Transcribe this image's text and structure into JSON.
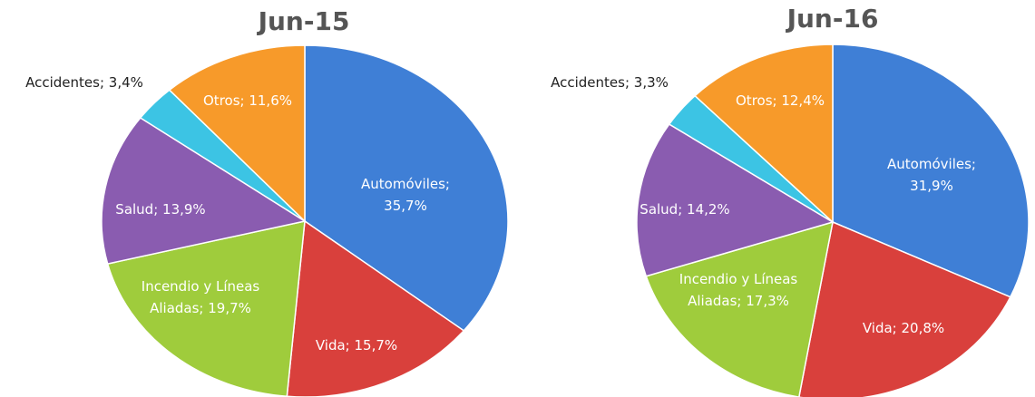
{
  "chart_data": [
    {
      "type": "pie",
      "title": "Jun-15",
      "values": [
        35.7,
        15.7,
        19.7,
        13.9,
        3.4,
        11.6
      ],
      "value_labels": [
        [
          "Automóviles;",
          "35,7%"
        ],
        [
          "Vida; 15,7%"
        ],
        [
          "Incendio y Líneas",
          "Aliadas; 19,7%"
        ],
        [
          "Salud; 13,9%"
        ],
        [
          "Accidentes; 3,4%"
        ],
        [
          "Otros; 11,6%"
        ]
      ],
      "colors": [
        "#3f7fd6",
        "#d9403c",
        "#9fcc3c",
        "#8a5cb0",
        "#3cc4e4",
        "#f79a2a"
      ]
    },
    {
      "type": "pie",
      "title": "Jun-16",
      "values": [
        31.9,
        20.8,
        17.3,
        14.2,
        3.3,
        12.4
      ],
      "value_labels": [
        [
          "Automóviles;",
          "31,9%"
        ],
        [
          "Vida; 20,8%"
        ],
        [
          "Incendio y Líneas",
          "Aliadas; 17,3%"
        ],
        [
          "Salud; 14,2%"
        ],
        [
          "Accidentes; 3,3%"
        ],
        [
          "Otros; 12,4%"
        ]
      ],
      "colors": [
        "#3f7fd6",
        "#d9403c",
        "#9fcc3c",
        "#8a5cb0",
        "#3cc4e4",
        "#f79a2a"
      ]
    }
  ]
}
